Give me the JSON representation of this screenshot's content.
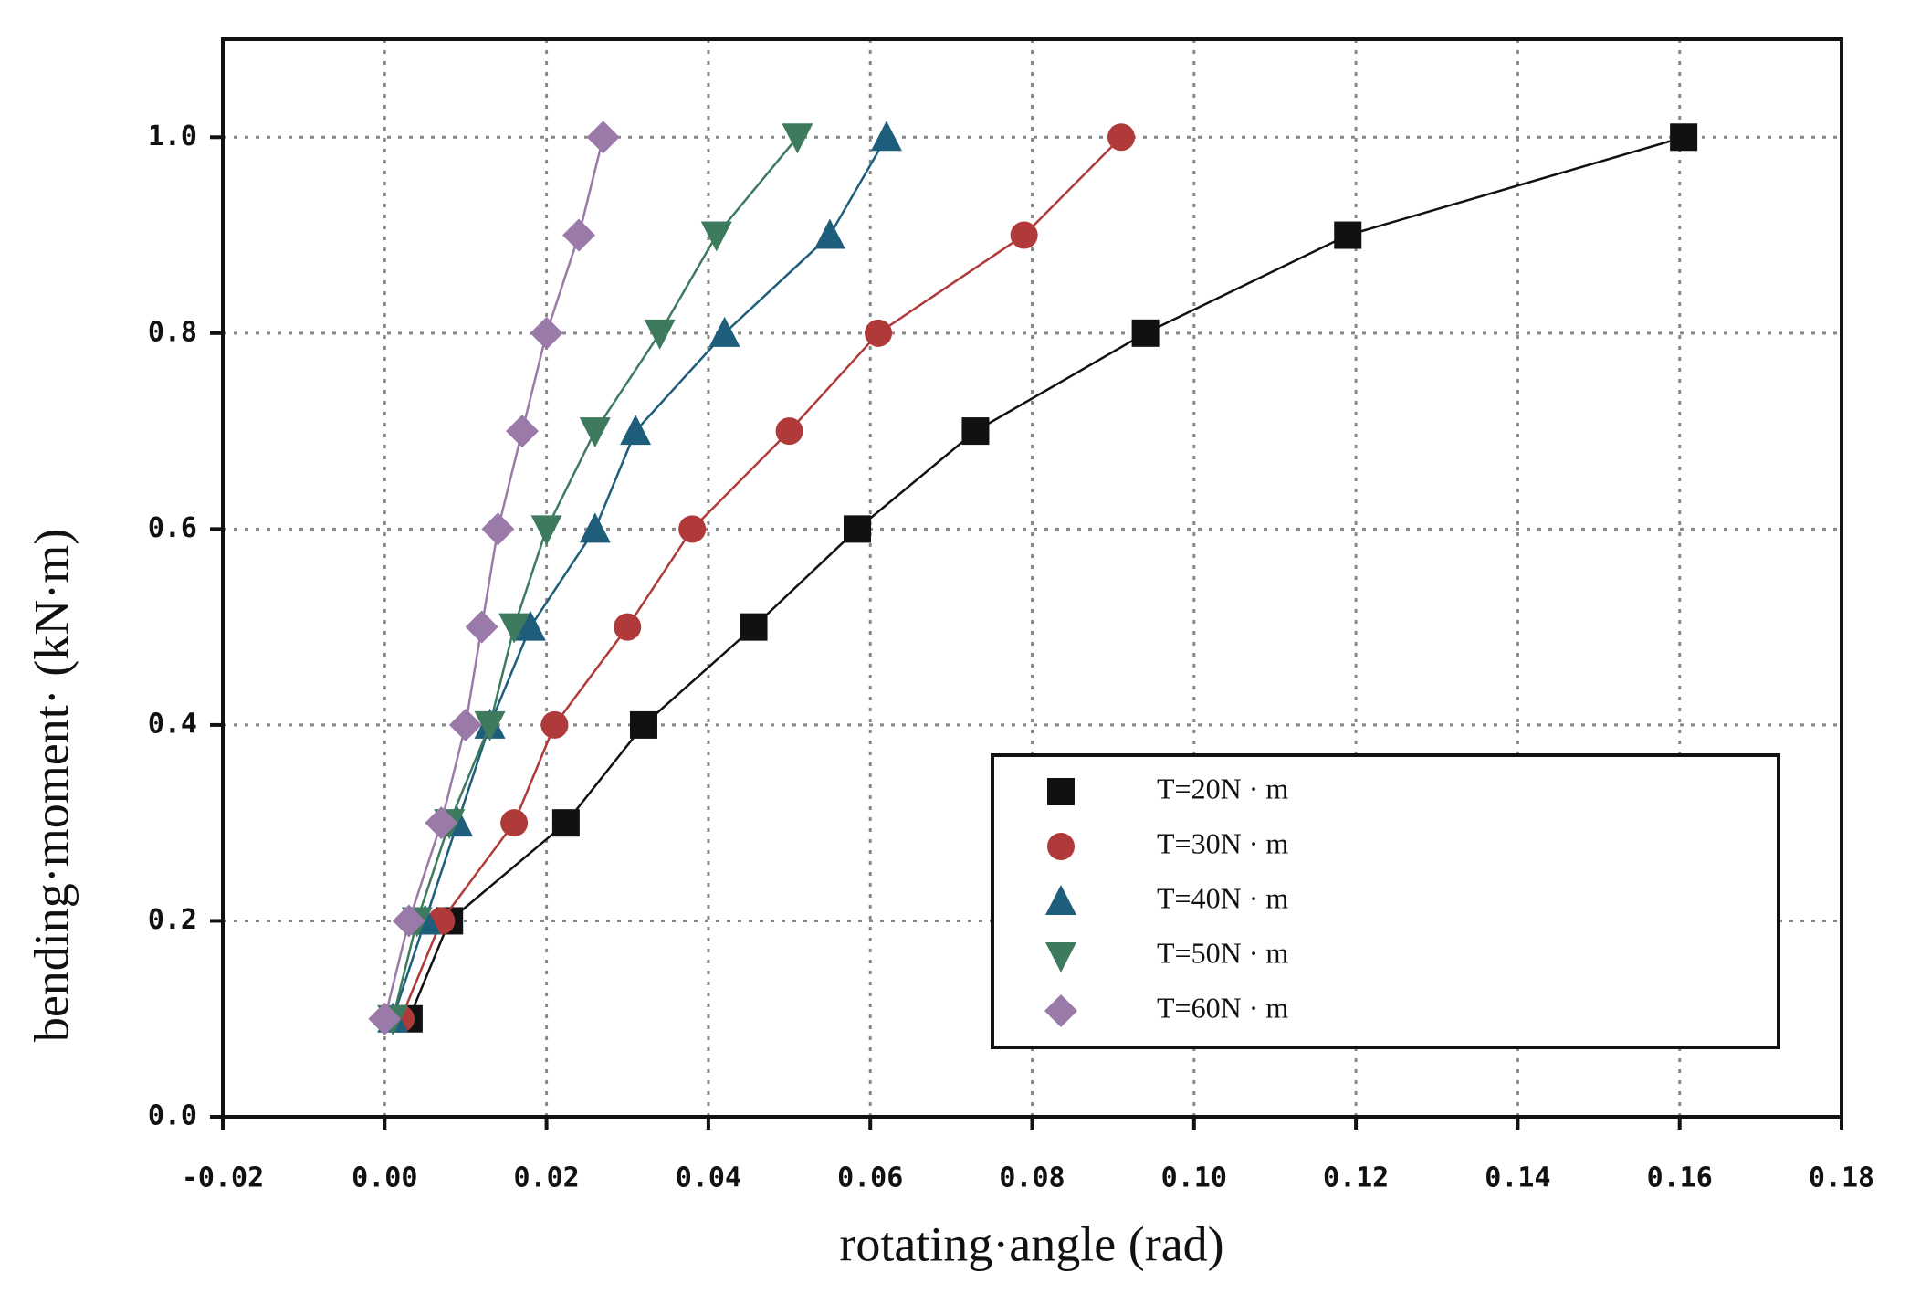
{
  "chart_data": {
    "type": "scatter",
    "x_label": "rotating·angle (rad)",
    "y_label": "bending·moment· (kN·m)",
    "xlim": [
      -0.02,
      0.18
    ],
    "ylim": [
      0,
      1.1
    ],
    "xticks": [
      {
        "value": -0.02,
        "label": "-0.02"
      },
      {
        "value": 0,
        "label": "0.00"
      },
      {
        "value": 0.02,
        "label": "0.02"
      },
      {
        "value": 0.04,
        "label": "0.04"
      },
      {
        "value": 0.06,
        "label": "0.06"
      },
      {
        "value": 0.08,
        "label": "0.08"
      },
      {
        "value": 0.1,
        "label": "0.10"
      },
      {
        "value": 0.12,
        "label": "0.12"
      },
      {
        "value": 0.14,
        "label": "0.14"
      },
      {
        "value": 0.16,
        "label": "0.16"
      },
      {
        "value": 0.18,
        "label": "0.18"
      }
    ],
    "yticks": [
      {
        "value": 0,
        "label": "0.0"
      },
      {
        "value": 0.2,
        "label": "0.2"
      },
      {
        "value": 0.4,
        "label": "0.4"
      },
      {
        "value": 0.6,
        "label": "0.6"
      },
      {
        "value": 0.8,
        "label": "0.8"
      },
      {
        "value": 1,
        "label": "1.0"
      }
    ],
    "grid": true,
    "legend": "lower right",
    "series": [
      {
        "name": "T=20N · m",
        "color": "#111111",
        "marker": "square",
        "x": [
          0.003,
          0.008,
          0.0224,
          0.032,
          0.0456,
          0.0584,
          0.073,
          0.094,
          0.119,
          0.1605
        ],
        "values": [
          0.1,
          0.2,
          0.3,
          0.4,
          0.5,
          0.6,
          0.7,
          0.8,
          0.9,
          1
        ]
      },
      {
        "name": "T=30N · m",
        "color": "#b03a3a",
        "marker": "circle",
        "x": [
          0.002,
          0.007,
          0.016,
          0.021,
          0.03,
          0.038,
          0.05,
          0.061,
          0.079,
          0.091
        ],
        "values": [
          0.1,
          0.2,
          0.3,
          0.4,
          0.5,
          0.6,
          0.7,
          0.8,
          0.9,
          1
        ]
      },
      {
        "name": "T=40N · m",
        "color": "#1f5e7a",
        "marker": "triangle-up",
        "x": [
          0.001,
          0.005,
          0.009,
          0.013,
          0.018,
          0.026,
          0.031,
          0.042,
          0.055,
          0.062
        ],
        "values": [
          0.1,
          0.2,
          0.3,
          0.4,
          0.5,
          0.6,
          0.7,
          0.8,
          0.9,
          1
        ]
      },
      {
        "name": "T=50N · m",
        "color": "#3d7a5e",
        "marker": "triangle-down",
        "x": [
          0.001,
          0.004,
          0.008,
          0.013,
          0.016,
          0.02,
          0.026,
          0.034,
          0.041,
          0.051
        ],
        "values": [
          0.1,
          0.2,
          0.3,
          0.4,
          0.5,
          0.6,
          0.7,
          0.8,
          0.9,
          1
        ]
      },
      {
        "name": "T=60N · m",
        "color": "#9a7aa8",
        "marker": "diamond",
        "x": [
          0,
          0.003,
          0.007,
          0.01,
          0.012,
          0.014,
          0.017,
          0.02,
          0.024,
          0.027
        ],
        "values": [
          0.1,
          0.2,
          0.3,
          0.4,
          0.5,
          0.6,
          0.7,
          0.8,
          0.9,
          1
        ]
      }
    ]
  }
}
